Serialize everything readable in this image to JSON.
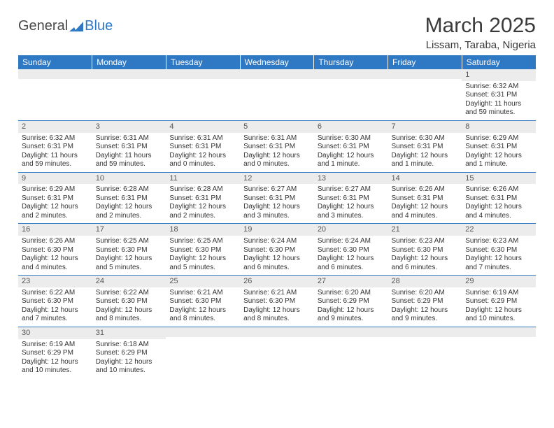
{
  "logo": {
    "text_general": "General",
    "text_blue": "Blue"
  },
  "header": {
    "title": "March 2025",
    "location": "Lissam, Taraba, Nigeria"
  },
  "colors": {
    "header_bg": "#2f78c4",
    "header_text": "#ffffff",
    "daynum_bg": "#ececec",
    "cell_border": "#2f78c4",
    "body_text": "#333333",
    "logo_gray": "#4a4a4a",
    "logo_blue": "#2f78c4"
  },
  "typography": {
    "title_fontsize": 30,
    "subtitle_fontsize": 15,
    "dayheader_fontsize": 12,
    "daynum_fontsize": 11,
    "daytext_fontsize": 10
  },
  "day_headers": [
    "Sunday",
    "Monday",
    "Tuesday",
    "Wednesday",
    "Thursday",
    "Friday",
    "Saturday"
  ],
  "weeks": [
    [
      {
        "day": "",
        "lines": []
      },
      {
        "day": "",
        "lines": []
      },
      {
        "day": "",
        "lines": []
      },
      {
        "day": "",
        "lines": []
      },
      {
        "day": "",
        "lines": []
      },
      {
        "day": "",
        "lines": []
      },
      {
        "day": "1",
        "lines": [
          "Sunrise: 6:32 AM",
          "Sunset: 6:31 PM",
          "Daylight: 11 hours and 59 minutes."
        ]
      }
    ],
    [
      {
        "day": "2",
        "lines": [
          "Sunrise: 6:32 AM",
          "Sunset: 6:31 PM",
          "Daylight: 11 hours and 59 minutes."
        ]
      },
      {
        "day": "3",
        "lines": [
          "Sunrise: 6:31 AM",
          "Sunset: 6:31 PM",
          "Daylight: 11 hours and 59 minutes."
        ]
      },
      {
        "day": "4",
        "lines": [
          "Sunrise: 6:31 AM",
          "Sunset: 6:31 PM",
          "Daylight: 12 hours and 0 minutes."
        ]
      },
      {
        "day": "5",
        "lines": [
          "Sunrise: 6:31 AM",
          "Sunset: 6:31 PM",
          "Daylight: 12 hours and 0 minutes."
        ]
      },
      {
        "day": "6",
        "lines": [
          "Sunrise: 6:30 AM",
          "Sunset: 6:31 PM",
          "Daylight: 12 hours and 1 minute."
        ]
      },
      {
        "day": "7",
        "lines": [
          "Sunrise: 6:30 AM",
          "Sunset: 6:31 PM",
          "Daylight: 12 hours and 1 minute."
        ]
      },
      {
        "day": "8",
        "lines": [
          "Sunrise: 6:29 AM",
          "Sunset: 6:31 PM",
          "Daylight: 12 hours and 1 minute."
        ]
      }
    ],
    [
      {
        "day": "9",
        "lines": [
          "Sunrise: 6:29 AM",
          "Sunset: 6:31 PM",
          "Daylight: 12 hours and 2 minutes."
        ]
      },
      {
        "day": "10",
        "lines": [
          "Sunrise: 6:28 AM",
          "Sunset: 6:31 PM",
          "Daylight: 12 hours and 2 minutes."
        ]
      },
      {
        "day": "11",
        "lines": [
          "Sunrise: 6:28 AM",
          "Sunset: 6:31 PM",
          "Daylight: 12 hours and 2 minutes."
        ]
      },
      {
        "day": "12",
        "lines": [
          "Sunrise: 6:27 AM",
          "Sunset: 6:31 PM",
          "Daylight: 12 hours and 3 minutes."
        ]
      },
      {
        "day": "13",
        "lines": [
          "Sunrise: 6:27 AM",
          "Sunset: 6:31 PM",
          "Daylight: 12 hours and 3 minutes."
        ]
      },
      {
        "day": "14",
        "lines": [
          "Sunrise: 6:26 AM",
          "Sunset: 6:31 PM",
          "Daylight: 12 hours and 4 minutes."
        ]
      },
      {
        "day": "15",
        "lines": [
          "Sunrise: 6:26 AM",
          "Sunset: 6:31 PM",
          "Daylight: 12 hours and 4 minutes."
        ]
      }
    ],
    [
      {
        "day": "16",
        "lines": [
          "Sunrise: 6:26 AM",
          "Sunset: 6:30 PM",
          "Daylight: 12 hours and 4 minutes."
        ]
      },
      {
        "day": "17",
        "lines": [
          "Sunrise: 6:25 AM",
          "Sunset: 6:30 PM",
          "Daylight: 12 hours and 5 minutes."
        ]
      },
      {
        "day": "18",
        "lines": [
          "Sunrise: 6:25 AM",
          "Sunset: 6:30 PM",
          "Daylight: 12 hours and 5 minutes."
        ]
      },
      {
        "day": "19",
        "lines": [
          "Sunrise: 6:24 AM",
          "Sunset: 6:30 PM",
          "Daylight: 12 hours and 6 minutes."
        ]
      },
      {
        "day": "20",
        "lines": [
          "Sunrise: 6:24 AM",
          "Sunset: 6:30 PM",
          "Daylight: 12 hours and 6 minutes."
        ]
      },
      {
        "day": "21",
        "lines": [
          "Sunrise: 6:23 AM",
          "Sunset: 6:30 PM",
          "Daylight: 12 hours and 6 minutes."
        ]
      },
      {
        "day": "22",
        "lines": [
          "Sunrise: 6:23 AM",
          "Sunset: 6:30 PM",
          "Daylight: 12 hours and 7 minutes."
        ]
      }
    ],
    [
      {
        "day": "23",
        "lines": [
          "Sunrise: 6:22 AM",
          "Sunset: 6:30 PM",
          "Daylight: 12 hours and 7 minutes."
        ]
      },
      {
        "day": "24",
        "lines": [
          "Sunrise: 6:22 AM",
          "Sunset: 6:30 PM",
          "Daylight: 12 hours and 8 minutes."
        ]
      },
      {
        "day": "25",
        "lines": [
          "Sunrise: 6:21 AM",
          "Sunset: 6:30 PM",
          "Daylight: 12 hours and 8 minutes."
        ]
      },
      {
        "day": "26",
        "lines": [
          "Sunrise: 6:21 AM",
          "Sunset: 6:30 PM",
          "Daylight: 12 hours and 8 minutes."
        ]
      },
      {
        "day": "27",
        "lines": [
          "Sunrise: 6:20 AM",
          "Sunset: 6:29 PM",
          "Daylight: 12 hours and 9 minutes."
        ]
      },
      {
        "day": "28",
        "lines": [
          "Sunrise: 6:20 AM",
          "Sunset: 6:29 PM",
          "Daylight: 12 hours and 9 minutes."
        ]
      },
      {
        "day": "29",
        "lines": [
          "Sunrise: 6:19 AM",
          "Sunset: 6:29 PM",
          "Daylight: 12 hours and 10 minutes."
        ]
      }
    ],
    [
      {
        "day": "30",
        "lines": [
          "Sunrise: 6:19 AM",
          "Sunset: 6:29 PM",
          "Daylight: 12 hours and 10 minutes."
        ]
      },
      {
        "day": "31",
        "lines": [
          "Sunrise: 6:18 AM",
          "Sunset: 6:29 PM",
          "Daylight: 12 hours and 10 minutes."
        ]
      },
      {
        "day": "",
        "lines": []
      },
      {
        "day": "",
        "lines": []
      },
      {
        "day": "",
        "lines": []
      },
      {
        "day": "",
        "lines": []
      },
      {
        "day": "",
        "lines": []
      }
    ]
  ]
}
